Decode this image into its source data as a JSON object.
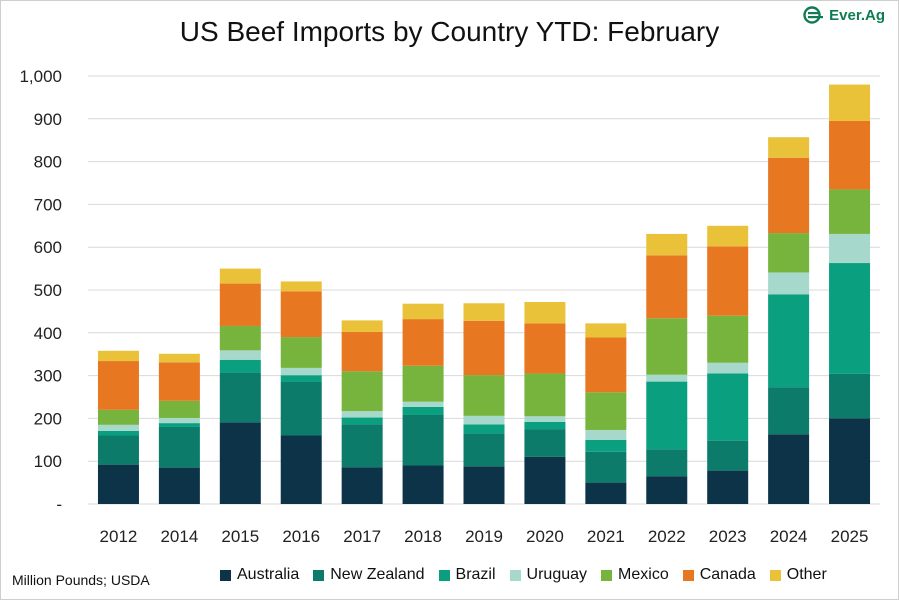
{
  "title": "US Beef Imports by Country YTD: February",
  "logo_text": "Ever.Ag",
  "note": "Million Pounds; USDA",
  "chart_data": {
    "type": "bar",
    "stacked": true,
    "title": "US Beef Imports by Country YTD: February",
    "categories": [
      "2012",
      "2014",
      "2015",
      "2016",
      "2017",
      "2018",
      "2019",
      "2020",
      "2021",
      "2022",
      "2023",
      "2024",
      "2025"
    ],
    "ylim": [
      0,
      1000
    ],
    "yticks": [
      0,
      100,
      200,
      300,
      400,
      500,
      600,
      700,
      800,
      900,
      1000
    ],
    "ytick_labels": [
      "-",
      "100",
      "200",
      "300",
      "400",
      "500",
      "600",
      "700",
      "800",
      "900",
      "1,000"
    ],
    "grid": true,
    "legend_position": "bottom",
    "series": [
      {
        "name": "Australia",
        "color": "#0d3349",
        "values": [
          92,
          85,
          191,
          160,
          86,
          90,
          88,
          110,
          50,
          65,
          78,
          163,
          200
        ]
      },
      {
        "name": "New Zealand",
        "color": "#0c7b6a",
        "values": [
          68,
          95,
          116,
          126,
          100,
          118,
          77,
          65,
          72,
          63,
          70,
          110,
          104
        ]
      },
      {
        "name": "Brazil",
        "color": "#0aa07f",
        "values": [
          11,
          9,
          30,
          15,
          16,
          19,
          21,
          17,
          28,
          158,
          157,
          217,
          259
        ]
      },
      {
        "name": "Uruguay",
        "color": "#a6d9cc",
        "values": [
          14,
          12,
          22,
          17,
          15,
          12,
          20,
          13,
          23,
          16,
          25,
          51,
          68
        ]
      },
      {
        "name": "Mexico",
        "color": "#76b43d",
        "values": [
          35,
          40,
          57,
          72,
          93,
          84,
          95,
          100,
          88,
          132,
          110,
          92,
          104
        ]
      },
      {
        "name": "Canada",
        "color": "#e87722",
        "values": [
          114,
          90,
          99,
          107,
          92,
          109,
          127,
          117,
          128,
          147,
          162,
          176,
          160
        ]
      },
      {
        "name": "Other",
        "color": "#e9c23a",
        "values": [
          24,
          20,
          35,
          23,
          27,
          36,
          41,
          50,
          33,
          50,
          48,
          48,
          85
        ]
      }
    ]
  }
}
